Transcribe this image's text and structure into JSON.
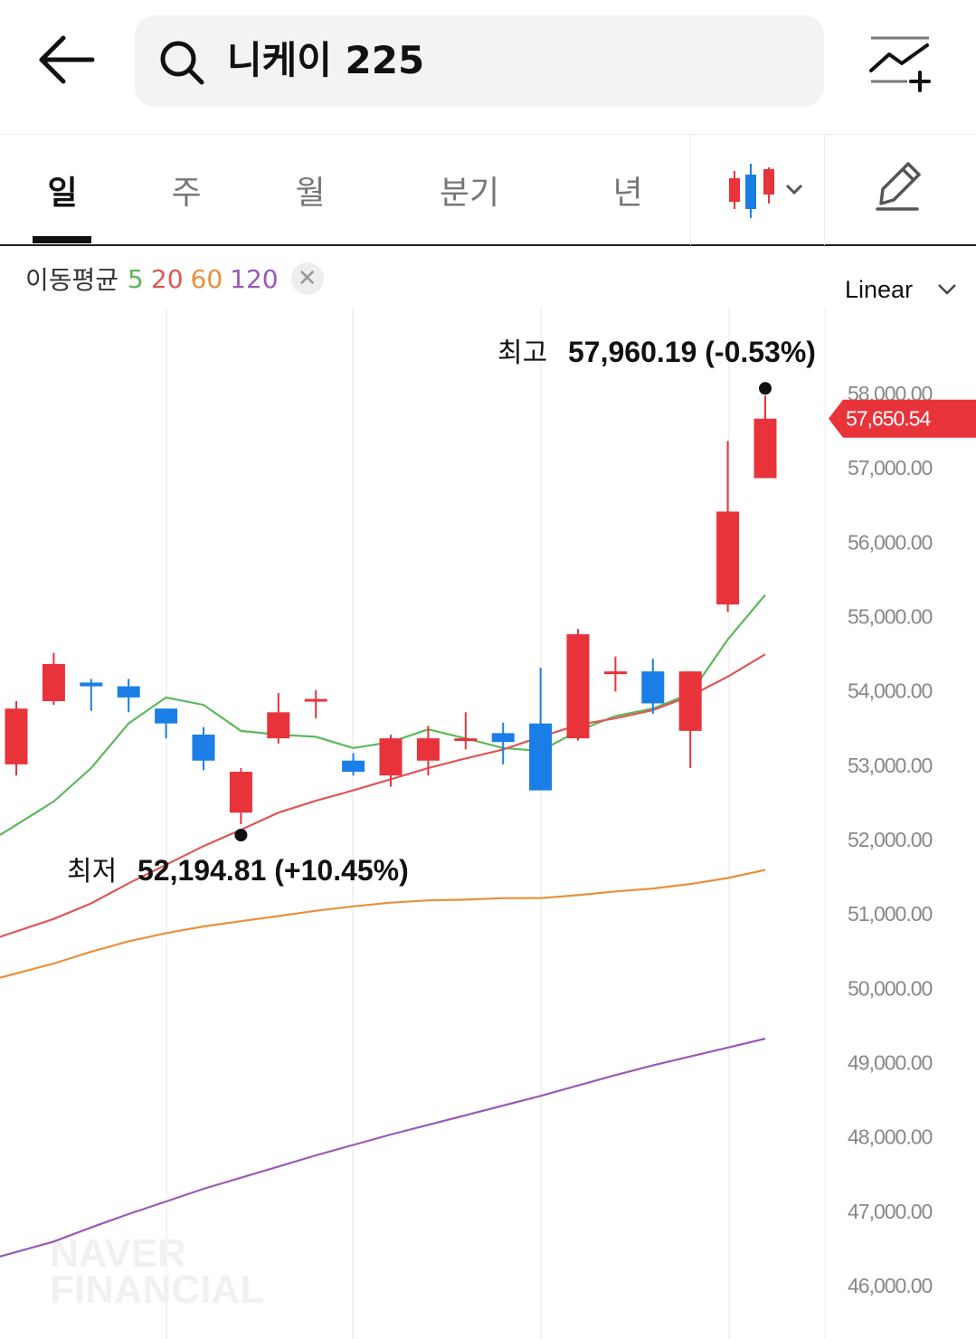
{
  "header": {
    "search_text": "니케이 225"
  },
  "tabs": [
    {
      "label": "일",
      "active": true
    },
    {
      "label": "주",
      "active": false
    },
    {
      "label": "월",
      "active": false
    },
    {
      "label": "분기",
      "active": false
    },
    {
      "label": "년",
      "active": false
    }
  ],
  "ma_legend": {
    "title": "이동평균",
    "periods": [
      {
        "label": "5",
        "color": "#5cb85c"
      },
      {
        "label": "20",
        "color": "#e05555"
      },
      {
        "label": "60",
        "color": "#e8913a"
      },
      {
        "label": "120",
        "color": "#9b59b6"
      }
    ]
  },
  "scale_select": {
    "value": "Linear"
  },
  "colors": {
    "up": "#e8333a",
    "down": "#1a7ee6",
    "current_price_bg": "#e8333a"
  },
  "watermark": {
    "line1": "NAVER",
    "line2": "FINANCIAL"
  },
  "chart_data": {
    "type": "candlestick",
    "ylim": [
      45600,
      59000
    ],
    "y_ticks": [
      "58,000.00",
      "57,000.00",
      "56,000.00",
      "55,000.00",
      "54,000.00",
      "53,000.00",
      "52,000.00",
      "51,000.00",
      "50,000.00",
      "49,000.00",
      "48,000.00",
      "47,000.00",
      "46,000.00"
    ],
    "y_tick_values": [
      58000,
      57000,
      56000,
      55000,
      54000,
      53000,
      52000,
      51000,
      50000,
      49000,
      48000,
      47000,
      46000
    ],
    "current_price": {
      "label": "57,650.54",
      "value": 57650.54
    },
    "high_annotation": {
      "prefix": "최고",
      "text": "57,960.19 (-0.53%)",
      "value": 57960.19,
      "index": 20
    },
    "low_annotation": {
      "prefix": "최저",
      "text": "52,194.81 (+10.45%)",
      "value": 52194.81,
      "index": 6
    },
    "candles": [
      {
        "o": 53000,
        "c": 53750,
        "h": 53850,
        "l": 52850
      },
      {
        "o": 53850,
        "c": 54350,
        "h": 54500,
        "l": 53800
      },
      {
        "o": 54100,
        "c": 54050,
        "h": 54150,
        "l": 53720
      },
      {
        "o": 54050,
        "c": 53900,
        "h": 54150,
        "l": 53700
      },
      {
        "o": 53750,
        "c": 53550,
        "h": 53750,
        "l": 53350
      },
      {
        "o": 53400,
        "c": 53050,
        "h": 53500,
        "l": 52920
      },
      {
        "o": 52350,
        "c": 52900,
        "h": 52950,
        "l": 52194.81
      },
      {
        "o": 53350,
        "c": 53700,
        "h": 53960,
        "l": 53280
      },
      {
        "o": 53880,
        "c": 53880,
        "h": 54000,
        "l": 53620
      },
      {
        "o": 53050,
        "c": 52900,
        "h": 53150,
        "l": 52850
      },
      {
        "o": 52850,
        "c": 53350,
        "h": 53400,
        "l": 52700
      },
      {
        "o": 53050,
        "c": 53350,
        "h": 53520,
        "l": 52850
      },
      {
        "o": 53350,
        "c": 53350,
        "h": 53700,
        "l": 53200
      },
      {
        "o": 53420,
        "c": 53300,
        "h": 53560,
        "l": 53000
      },
      {
        "o": 53550,
        "c": 52650,
        "h": 54300,
        "l": 52650
      },
      {
        "o": 53350,
        "c": 54750,
        "h": 54820,
        "l": 53320
      },
      {
        "o": 54250,
        "c": 54250,
        "h": 54450,
        "l": 53980
      },
      {
        "o": 54250,
        "c": 53820,
        "h": 54420,
        "l": 53680
      },
      {
        "o": 53450,
        "c": 54250,
        "h": 54250,
        "l": 52950
      },
      {
        "o": 55150,
        "c": 56400,
        "h": 57350,
        "l": 55050
      },
      {
        "o": 56850,
        "c": 57650.54,
        "h": 57960.19,
        "l": 56850
      }
    ],
    "series": [
      {
        "name": "5",
        "color": "#5cb85c",
        "values": [
          52050,
          52500,
          52950,
          53550,
          53900,
          53800,
          53450,
          53400,
          53370,
          53220,
          53300,
          53470,
          53350,
          53220,
          53180,
          53450,
          53650,
          53750,
          53950,
          54680,
          55280
        ]
      },
      {
        "name": "20",
        "color": "#e05555",
        "values": [
          50680,
          50920,
          51130,
          51400,
          51650,
          51900,
          52120,
          52350,
          52510,
          52650,
          52800,
          52950,
          53080,
          53200,
          53370,
          53530,
          53620,
          53730,
          53920,
          54180,
          54480
        ]
      },
      {
        "name": "60",
        "color": "#e8913a",
        "values": [
          50130,
          50320,
          50480,
          50620,
          50730,
          50820,
          50890,
          50960,
          51030,
          51090,
          51140,
          51170,
          51180,
          51200,
          51200,
          51240,
          51290,
          51330,
          51390,
          51470,
          51580
        ]
      },
      {
        "name": "120",
        "color": "#9b59b6",
        "values": [
          46380,
          46580,
          46770,
          46950,
          47120,
          47290,
          47440,
          47590,
          47740,
          47880,
          48020,
          48150,
          48280,
          48410,
          48540,
          48680,
          48820,
          48950,
          49070,
          49190,
          49310
        ]
      }
    ]
  }
}
